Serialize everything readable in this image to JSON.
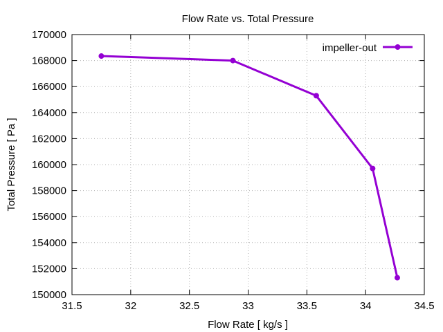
{
  "chart_data": {
    "type": "line",
    "title": "Flow Rate vs. Total Pressure",
    "xlabel": "Flow Rate [ kg/s ]",
    "ylabel": "Total Pressure [ Pa ]",
    "xlim": [
      31.5,
      34.5
    ],
    "ylim": [
      150000,
      170000
    ],
    "x_ticks": [
      "31.5",
      "32",
      "32.5",
      "33",
      "33.5",
      "34",
      "34.5"
    ],
    "y_ticks": [
      "150000",
      "152000",
      "154000",
      "156000",
      "158000",
      "160000",
      "162000",
      "164000",
      "166000",
      "168000",
      "170000"
    ],
    "grid": true,
    "legend_position": "top-right",
    "series": [
      {
        "name": "impeller-out",
        "color": "#9400d3",
        "marker": "circle",
        "x": [
          31.75,
          32.87,
          33.58,
          34.06,
          34.27
        ],
        "y": [
          168350,
          168000,
          165300,
          159700,
          151300
        ]
      }
    ]
  }
}
